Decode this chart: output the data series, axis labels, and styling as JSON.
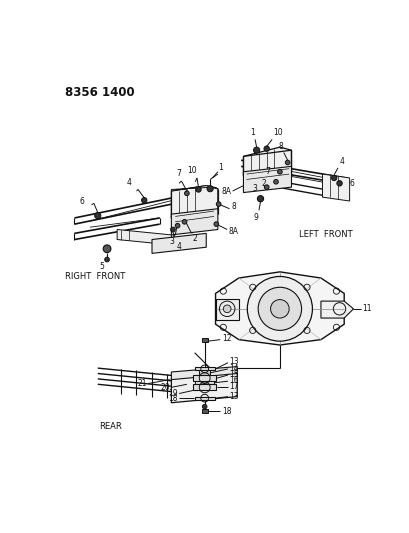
{
  "title": "8356 1400",
  "background_color": "#ffffff",
  "text_color": "#111111",
  "line_color": "#111111",
  "fig_width": 4.1,
  "fig_height": 5.33,
  "dpi": 100,
  "labels": {
    "right_front": "RIGHT  FRONT",
    "left_front": "LEFT  FRONT",
    "rear": "REAR"
  }
}
